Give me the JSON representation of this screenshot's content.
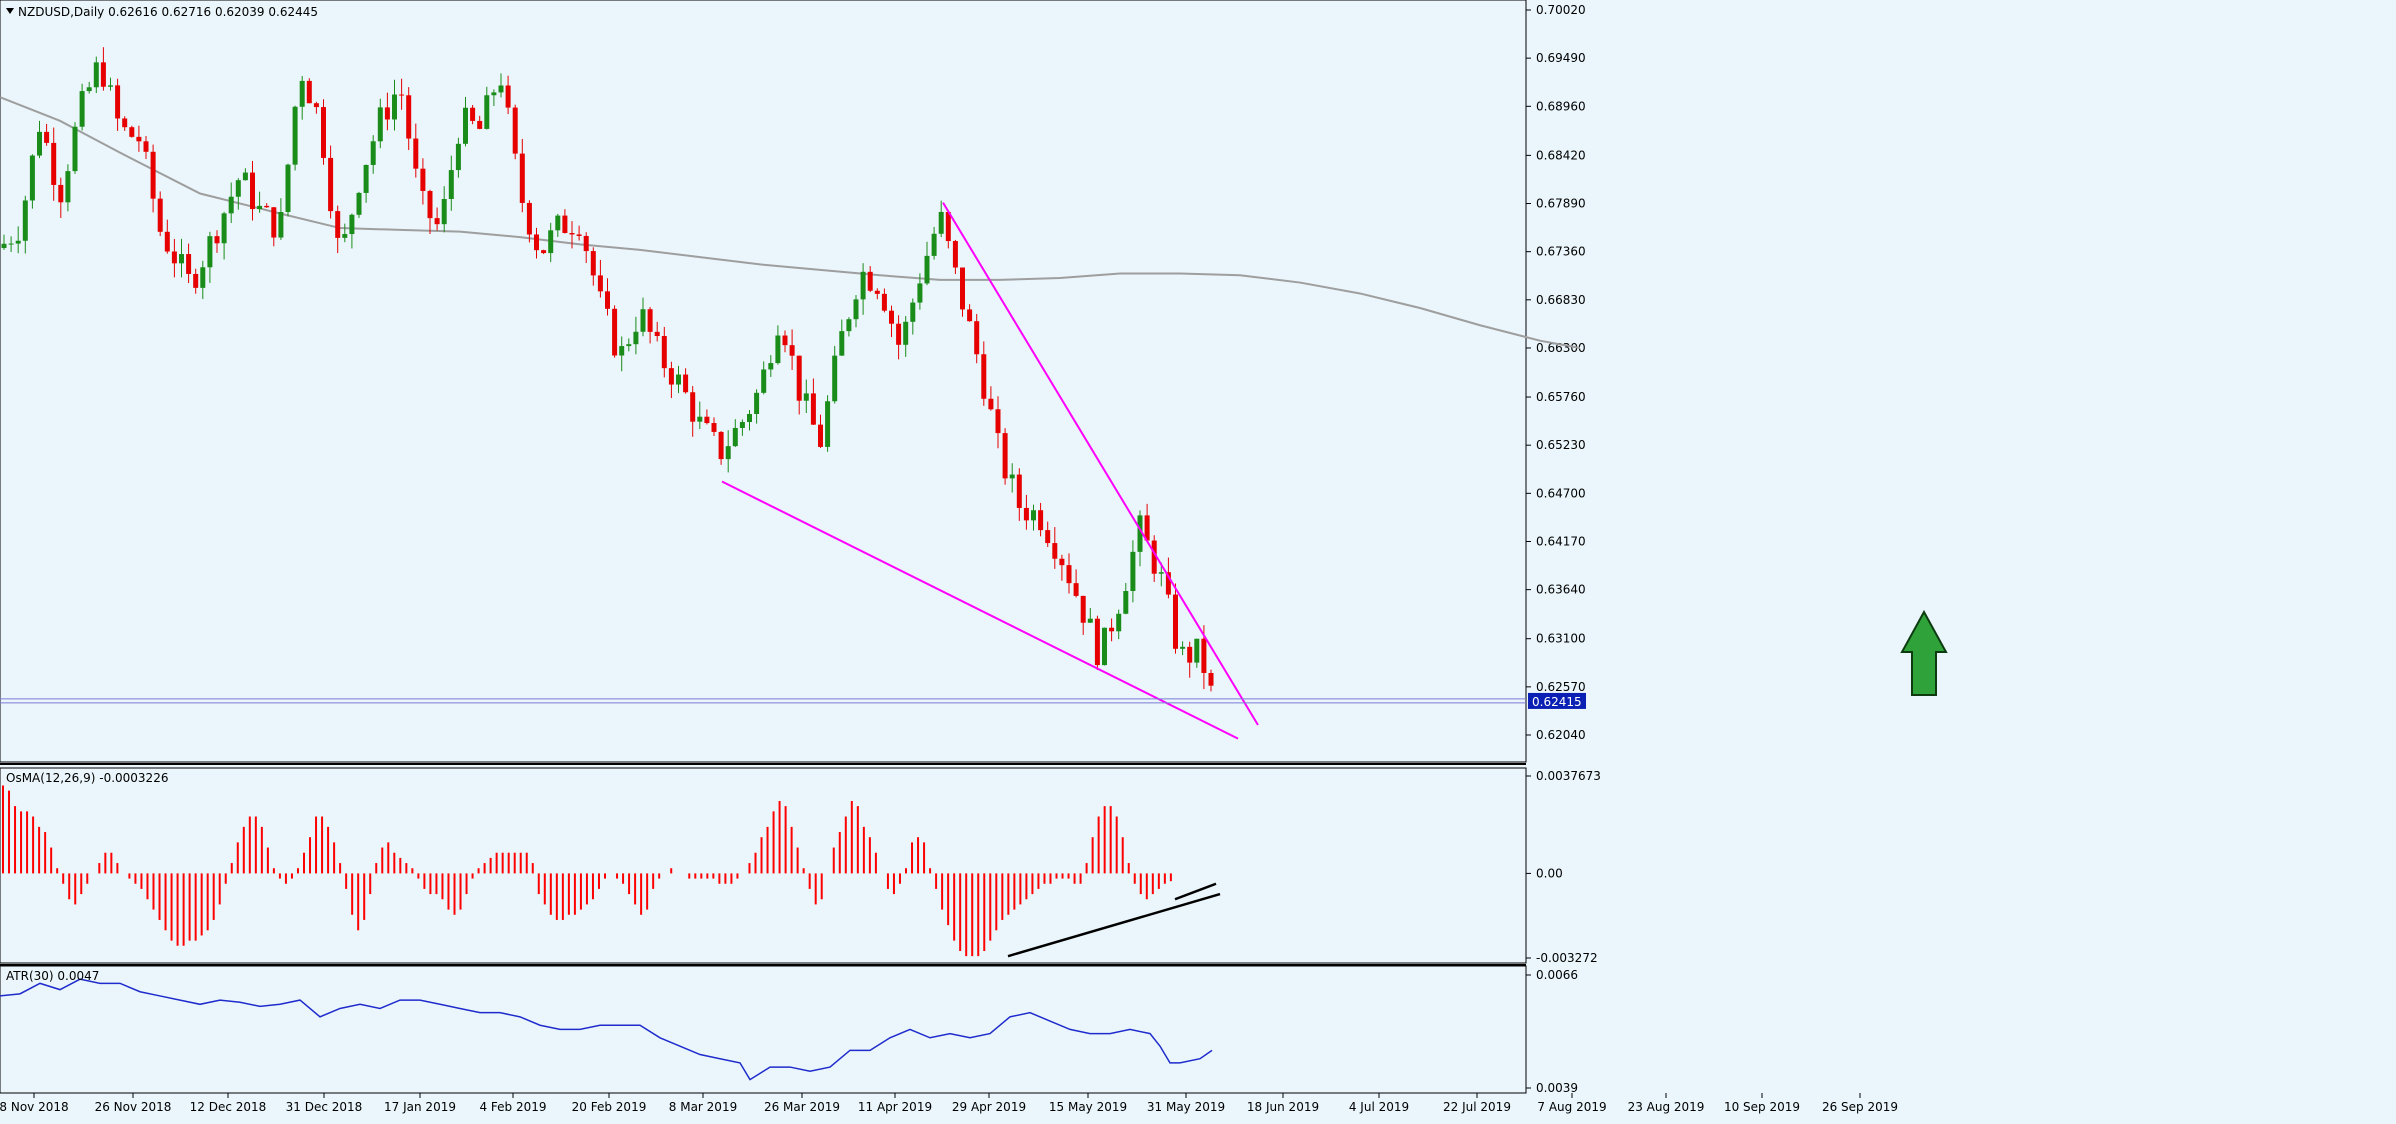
{
  "chart_data": [
    {
      "type": "candlestick",
      "panel": "main",
      "title": "NZDUSD,Daily  0.62616 0.62716 0.62039 0.62445",
      "symbol": "NZDUSD",
      "timeframe": "Daily",
      "ohlc_header": {
        "open": 0.62616,
        "high": 0.62716,
        "low": 0.62039,
        "close": 0.62445
      },
      "ylim": [
        0.6193,
        0.7002
      ],
      "y_ticks": [
        "0.70020",
        "0.69490",
        "0.68960",
        "0.68420",
        "0.67890",
        "0.67360",
        "0.66830",
        "0.66300",
        "0.65760",
        "0.65230",
        "0.64700",
        "0.64170",
        "0.63640",
        "0.63100",
        "0.62570",
        "0.62040"
      ],
      "current_price_label": "0.62415",
      "current_price": 0.62415,
      "moving_average": {
        "color": "#9e9e9e",
        "points": [
          [
            0,
            0.6906
          ],
          [
            60,
            0.688
          ],
          [
            120,
            0.6845
          ],
          [
            200,
            0.68
          ],
          [
            280,
            0.6778
          ],
          [
            340,
            0.6762
          ],
          [
            400,
            0.676
          ],
          [
            460,
            0.6758
          ],
          [
            520,
            0.6752
          ],
          [
            580,
            0.6744
          ],
          [
            640,
            0.6738
          ],
          [
            700,
            0.673
          ],
          [
            760,
            0.6722
          ],
          [
            820,
            0.6716
          ],
          [
            880,
            0.671
          ],
          [
            940,
            0.6705
          ],
          [
            1000,
            0.6705
          ],
          [
            1060,
            0.6707
          ],
          [
            1120,
            0.6712
          ],
          [
            1180,
            0.6712
          ],
          [
            1240,
            0.671
          ],
          [
            1300,
            0.6702
          ],
          [
            1360,
            0.669
          ],
          [
            1420,
            0.6674
          ],
          [
            1480,
            0.6655
          ],
          [
            1540,
            0.6638
          ],
          [
            1580,
            0.663
          ]
        ]
      },
      "trendlines": [
        {
          "color": "#ff00ff",
          "from": [
            943,
            0.679
          ],
          "to": [
            1258,
            0.6215
          ]
        },
        {
          "color": "#ff00ff",
          "from": [
            722,
            0.6483
          ],
          "to": [
            1238,
            0.62
          ]
        }
      ],
      "arrow": {
        "color": "#2fa33a",
        "direction": "up"
      },
      "candle_points": [
        [
          0,
          0.674
        ],
        [
          20,
          0.6765
        ],
        [
          40,
          0.688
        ],
        [
          60,
          0.68
        ],
        [
          80,
          0.689
        ],
        [
          100,
          0.6945
        ],
        [
          120,
          0.687
        ],
        [
          140,
          0.686
        ],
        [
          160,
          0.676
        ],
        [
          190,
          0.67
        ],
        [
          210,
          0.6745
        ],
        [
          240,
          0.682
        ],
        [
          260,
          0.678
        ],
        [
          280,
          0.676
        ],
        [
          300,
          0.694
        ],
        [
          320,
          0.688
        ],
        [
          340,
          0.6725
        ],
        [
          360,
          0.682
        ],
        [
          380,
          0.688
        ],
        [
          400,
          0.692
        ],
        [
          420,
          0.679
        ],
        [
          440,
          0.676
        ],
        [
          460,
          0.688
        ],
        [
          480,
          0.687
        ],
        [
          500,
          0.6935
        ],
        [
          520,
          0.68
        ],
        [
          540,
          0.6735
        ],
        [
          560,
          0.6765
        ],
        [
          580,
          0.677
        ],
        [
          600,
          0.668
        ],
        [
          620,
          0.662
        ],
        [
          640,
          0.667
        ],
        [
          660,
          0.662
        ],
        [
          680,
          0.659
        ],
        [
          700,
          0.6545
        ],
        [
          720,
          0.6515
        ],
        [
          740,
          0.6545
        ],
        [
          760,
          0.6585
        ],
        [
          780,
          0.667
        ],
        [
          800,
          0.658
        ],
        [
          820,
          0.6525
        ],
        [
          840,
          0.6635
        ],
        [
          860,
          0.6715
        ],
        [
          880,
          0.67
        ],
        [
          900,
          0.663
        ],
        [
          920,
          0.671
        ],
        [
          940,
          0.6775
        ],
        [
          960,
          0.669
        ],
        [
          980,
          0.661
        ],
        [
          1000,
          0.651
        ],
        [
          1020,
          0.6455
        ],
        [
          1040,
          0.6445
        ],
        [
          1060,
          0.6405
        ],
        [
          1080,
          0.635
        ],
        [
          1100,
          0.629
        ],
        [
          1120,
          0.6355
        ],
        [
          1140,
          0.643
        ],
        [
          1160,
          0.638
        ],
        [
          1180,
          0.629
        ],
        [
          1200,
          0.6295
        ],
        [
          1212,
          0.6245
        ]
      ],
      "x_labels": [
        "8 Nov 2018",
        "26 Nov 2018",
        "12 Dec 2018",
        "31 Dec 2018",
        "17 Jan 2019",
        "4 Feb 2019",
        "20 Feb 2019",
        "8 Mar 2019",
        "26 Mar 2019",
        "11 Apr 2019",
        "29 Apr 2019",
        "15 May 2019",
        "31 May 2019",
        "18 Jun 2019",
        "4 Jul 2019",
        "22 Jul 2019",
        "7 Aug 2019",
        "23 Aug 2019",
        "10 Sep 2019",
        "26 Sep 2019"
      ]
    },
    {
      "type": "bar",
      "panel": "osma",
      "title": "OsMA(12,26,9) -0.0003226",
      "ylim": [
        -0.003272,
        0.0037673
      ],
      "y_ticks": [
        "0.0037673",
        "0.00",
        "-0.003272"
      ],
      "color": "#ff0000",
      "values": [
        0.0034,
        0.0032,
        0.0026,
        0.0024,
        0.0024,
        0.0022,
        0.0018,
        0.0016,
        0.001,
        0.0002,
        -0.0004,
        -0.001,
        -0.0012,
        -0.0008,
        -0.0004,
        0,
        0.0004,
        0.0008,
        0.0008,
        0.0004,
        0,
        -0.0002,
        -0.0004,
        -0.0006,
        -0.001,
        -0.0014,
        -0.0018,
        -0.0022,
        -0.0026,
        -0.0028,
        -0.0028,
        -0.0026,
        -0.0026,
        -0.0024,
        -0.0022,
        -0.0018,
        -0.0012,
        -0.0004,
        0.0004,
        0.0012,
        0.0018,
        0.0022,
        0.0022,
        0.0018,
        0.001,
        0.0002,
        -0.0002,
        -0.0004,
        -0.0002,
        0.0002,
        0.0008,
        0.0014,
        0.0022,
        0.0022,
        0.0018,
        0.0012,
        0.0004,
        -0.0006,
        -0.0016,
        -0.0022,
        -0.0018,
        -0.0008,
        0.0004,
        0.001,
        0.0012,
        0.0008,
        0.0006,
        0.0004,
        0.0002,
        -0.0002,
        -0.0006,
        -0.0008,
        -0.0008,
        -0.001,
        -0.0014,
        -0.0016,
        -0.0014,
        -0.0008,
        -0.0002,
        0.0002,
        0.0004,
        0.0006,
        0.0008,
        0.0008,
        0.0008,
        0.0008,
        0.0008,
        0.0008,
        0.0004,
        -0.0008,
        -0.0012,
        -0.0016,
        -0.0018,
        -0.0018,
        -0.0016,
        -0.0016,
        -0.0014,
        -0.0012,
        -0.001,
        -0.0006,
        -0.0002,
        0,
        -0.0002,
        -0.0004,
        -0.0008,
        -0.0012,
        -0.0016,
        -0.0014,
        -0.0006,
        -0.0002,
        0,
        0.0002,
        0,
        0,
        -0.0002,
        -0.0002,
        -0.0002,
        -0.0002,
        -0.0002,
        -0.0004,
        -0.0004,
        -0.0004,
        -0.0002,
        0,
        0.0004,
        0.0008,
        0.0014,
        0.0018,
        0.0024,
        0.0028,
        0.0026,
        0.0018,
        0.001,
        0.0002,
        -0.0006,
        -0.0012,
        -0.001,
        0,
        0.001,
        0.0016,
        0.0022,
        0.0028,
        0.0026,
        0.0018,
        0.0014,
        0.0008,
        0,
        -0.0006,
        -0.0008,
        -0.0004,
        0.0002,
        0.0012,
        0.0014,
        0.0012,
        0.0002,
        -0.0006,
        -0.0014,
        -0.002,
        -0.0026,
        -0.003,
        -0.0032,
        -0.0032,
        -0.0032,
        -0.003,
        -0.0026,
        -0.0022,
        -0.0018,
        -0.0016,
        -0.0014,
        -0.0012,
        -0.001,
        -0.0008,
        -0.0006,
        -0.0004,
        -0.0004,
        -0.0002,
        -0.0002,
        -0.0002,
        -0.0004,
        -0.0004,
        0.0004,
        0.0014,
        0.0022,
        0.0026,
        0.0026,
        0.0022,
        0.0014,
        0.0004,
        -0.0004,
        -0.0008,
        -0.001,
        -0.0008,
        -0.0006,
        -0.0004,
        -0.0003
      ],
      "divergence_lines": [
        {
          "color": "#000000",
          "from": [
            1008,
            -0.0032
          ],
          "to": [
            1220,
            -0.0008
          ]
        },
        {
          "color": "#000000",
          "from": [
            1175,
            -0.001
          ],
          "to": [
            1216,
            -0.0004
          ]
        }
      ]
    },
    {
      "type": "line",
      "panel": "atr",
      "title": "ATR(30) 0.0047",
      "ylim": [
        0.0039,
        0.0066
      ],
      "y_ticks": [
        "0.0066",
        "0.0039"
      ],
      "color": "#1f2bcc",
      "points": [
        [
          0,
          0.0061
        ],
        [
          20,
          0.00615
        ],
        [
          40,
          0.0064
        ],
        [
          60,
          0.00625
        ],
        [
          80,
          0.0065
        ],
        [
          100,
          0.0064
        ],
        [
          120,
          0.0064
        ],
        [
          140,
          0.0062
        ],
        [
          160,
          0.0061
        ],
        [
          180,
          0.006
        ],
        [
          200,
          0.0059
        ],
        [
          220,
          0.006
        ],
        [
          240,
          0.00595
        ],
        [
          260,
          0.00585
        ],
        [
          280,
          0.0059
        ],
        [
          300,
          0.006
        ],
        [
          320,
          0.0056
        ],
        [
          340,
          0.0058
        ],
        [
          360,
          0.0059
        ],
        [
          380,
          0.0058
        ],
        [
          400,
          0.006
        ],
        [
          420,
          0.006
        ],
        [
          440,
          0.0059
        ],
        [
          460,
          0.0058
        ],
        [
          480,
          0.0057
        ],
        [
          500,
          0.0057
        ],
        [
          520,
          0.0056
        ],
        [
          540,
          0.0054
        ],
        [
          560,
          0.0053
        ],
        [
          580,
          0.0053
        ],
        [
          600,
          0.0054
        ],
        [
          620,
          0.0054
        ],
        [
          640,
          0.0054
        ],
        [
          660,
          0.0051
        ],
        [
          680,
          0.0049
        ],
        [
          700,
          0.0047
        ],
        [
          720,
          0.0046
        ],
        [
          740,
          0.0045
        ],
        [
          750,
          0.0041
        ],
        [
          770,
          0.0044
        ],
        [
          790,
          0.0044
        ],
        [
          810,
          0.0043
        ],
        [
          830,
          0.0044
        ],
        [
          850,
          0.0048
        ],
        [
          870,
          0.0048
        ],
        [
          890,
          0.0051
        ],
        [
          910,
          0.0053
        ],
        [
          930,
          0.0051
        ],
        [
          950,
          0.0052
        ],
        [
          970,
          0.0051
        ],
        [
          990,
          0.0052
        ],
        [
          1010,
          0.0056
        ],
        [
          1030,
          0.0057
        ],
        [
          1050,
          0.0055
        ],
        [
          1070,
          0.0053
        ],
        [
          1090,
          0.0052
        ],
        [
          1110,
          0.0052
        ],
        [
          1130,
          0.0053
        ],
        [
          1150,
          0.0052
        ],
        [
          1160,
          0.0049
        ],
        [
          1170,
          0.0045
        ],
        [
          1180,
          0.0045
        ],
        [
          1200,
          0.0046
        ],
        [
          1212,
          0.0048
        ]
      ]
    }
  ]
}
